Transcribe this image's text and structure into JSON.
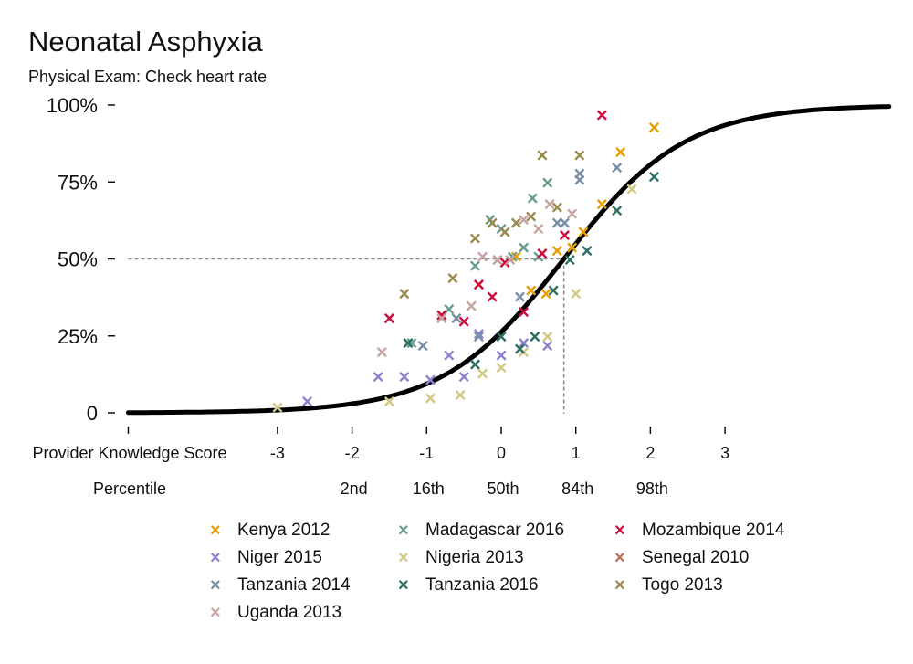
{
  "chart_data": {
    "type": "scatter",
    "title": "Neonatal Asphyxia",
    "subtitle": "Physical Exam: Check heart rate",
    "xlabel": "Provider Knowledge Score",
    "x_ticks": [
      -3,
      -2,
      -1,
      0,
      1,
      2,
      3
    ],
    "x_tick_labels": [
      "-3",
      "-2",
      "-1",
      "0",
      "1",
      "2",
      "3"
    ],
    "xlim": [
      -5,
      5.2
    ],
    "percentile_label": "Percentile",
    "percentile_ticks": [
      {
        "x": -2,
        "label": "2nd"
      },
      {
        "x": -1,
        "label": "16th"
      },
      {
        "x": 0,
        "label": "50th"
      },
      {
        "x": 1,
        "label": "84th"
      },
      {
        "x": 2,
        "label": "98th"
      }
    ],
    "y_ticks": [
      0,
      25,
      50,
      75,
      100
    ],
    "y_tick_labels": [
      "0",
      "25%",
      "50%",
      "75%",
      "100%"
    ],
    "ylim": [
      0,
      100
    ],
    "grid": false,
    "legend_position": "bottom",
    "curve": {
      "type": "logistic",
      "midpoint": 0.84,
      "slope": 1.23,
      "lower": 0,
      "upper": 100
    },
    "reference": {
      "x": 0.84,
      "y": 50
    },
    "series": [
      {
        "name": "Kenya 2012",
        "color": "#E69F00",
        "points": [
          [
            -0.3,
            41
          ],
          [
            0.2,
            50
          ],
          [
            0.4,
            39
          ],
          [
            0.6,
            38
          ],
          [
            0.75,
            52
          ],
          [
            0.95,
            53
          ],
          [
            1.1,
            58
          ],
          [
            1.35,
            67
          ],
          [
            1.6,
            84
          ],
          [
            2.05,
            92
          ]
        ]
      },
      {
        "name": "Madagascar 2016",
        "color": "#6A9C8E",
        "points": [
          [
            -1.5,
            30
          ],
          [
            -1.2,
            22
          ],
          [
            -0.7,
            33
          ],
          [
            -0.35,
            47
          ],
          [
            -0.15,
            62
          ],
          [
            0,
            59
          ],
          [
            0.15,
            50
          ],
          [
            0.3,
            53
          ],
          [
            0.42,
            69
          ],
          [
            0.62,
            74
          ],
          [
            0.5,
            50
          ]
        ]
      },
      {
        "name": "Mozambique 2014",
        "color": "#CC0C3D",
        "points": [
          [
            -1.5,
            30
          ],
          [
            -0.8,
            31
          ],
          [
            -0.5,
            29
          ],
          [
            -0.3,
            41
          ],
          [
            -0.12,
            37
          ],
          [
            0.05,
            48
          ],
          [
            0.3,
            32
          ],
          [
            0.55,
            51
          ],
          [
            0.85,
            57
          ],
          [
            1.35,
            96
          ]
        ]
      },
      {
        "name": "Niger 2015",
        "color": "#8B84CC",
        "points": [
          [
            -2.6,
            3
          ],
          [
            -1.65,
            11
          ],
          [
            -1.3,
            11
          ],
          [
            -0.95,
            10
          ],
          [
            -0.7,
            18
          ],
          [
            -0.5,
            11
          ],
          [
            -0.3,
            25
          ],
          [
            0,
            18
          ],
          [
            0.3,
            22
          ],
          [
            0.62,
            21
          ]
        ]
      },
      {
        "name": "Nigeria 2013",
        "color": "#D2C984",
        "points": [
          [
            -3,
            1
          ],
          [
            -1.5,
            3
          ],
          [
            -0.95,
            4
          ],
          [
            -0.55,
            5
          ],
          [
            -0.25,
            12
          ],
          [
            0,
            14
          ],
          [
            0.3,
            19
          ],
          [
            0.62,
            24
          ],
          [
            1.0,
            38
          ],
          [
            1.75,
            72
          ]
        ]
      },
      {
        "name": "Senegal 2010",
        "color": "#B86E50",
        "points": [
          [
            -0.05,
            49
          ]
        ]
      },
      {
        "name": "Tanzania 2014",
        "color": "#7A8EA8",
        "points": [
          [
            -1.05,
            21
          ],
          [
            -0.6,
            30
          ],
          [
            -0.3,
            24
          ],
          [
            0.25,
            37
          ],
          [
            0.75,
            61
          ],
          [
            0.85,
            61
          ],
          [
            1.05,
            77
          ],
          [
            1.05,
            75
          ],
          [
            1.55,
            79
          ]
        ]
      },
      {
        "name": "Tanzania 2016",
        "color": "#2C6E62",
        "points": [
          [
            -1.25,
            22
          ],
          [
            -0.35,
            15
          ],
          [
            0,
            24
          ],
          [
            0.25,
            20
          ],
          [
            0.45,
            24
          ],
          [
            0.7,
            39
          ],
          [
            0.92,
            49
          ],
          [
            1.15,
            52
          ],
          [
            1.55,
            65
          ],
          [
            2.05,
            76
          ]
        ]
      },
      {
        "name": "Togo 2013",
        "color": "#9B8A4E",
        "points": [
          [
            -1.3,
            38
          ],
          [
            -0.65,
            43
          ],
          [
            -0.35,
            56
          ],
          [
            -0.12,
            61
          ],
          [
            0.05,
            58
          ],
          [
            0.2,
            61
          ],
          [
            0.4,
            63
          ],
          [
            0.55,
            83
          ],
          [
            0.75,
            66
          ],
          [
            1.05,
            83
          ]
        ]
      },
      {
        "name": "Uganda 2013",
        "color": "#C6A6A3",
        "points": [
          [
            -1.6,
            19
          ],
          [
            -0.8,
            30
          ],
          [
            -0.4,
            34
          ],
          [
            -0.25,
            50
          ],
          [
            -0.05,
            49
          ],
          [
            0.12,
            49
          ],
          [
            0.3,
            62
          ],
          [
            0.5,
            59
          ],
          [
            0.65,
            67
          ],
          [
            0.95,
            64
          ]
        ]
      }
    ]
  }
}
